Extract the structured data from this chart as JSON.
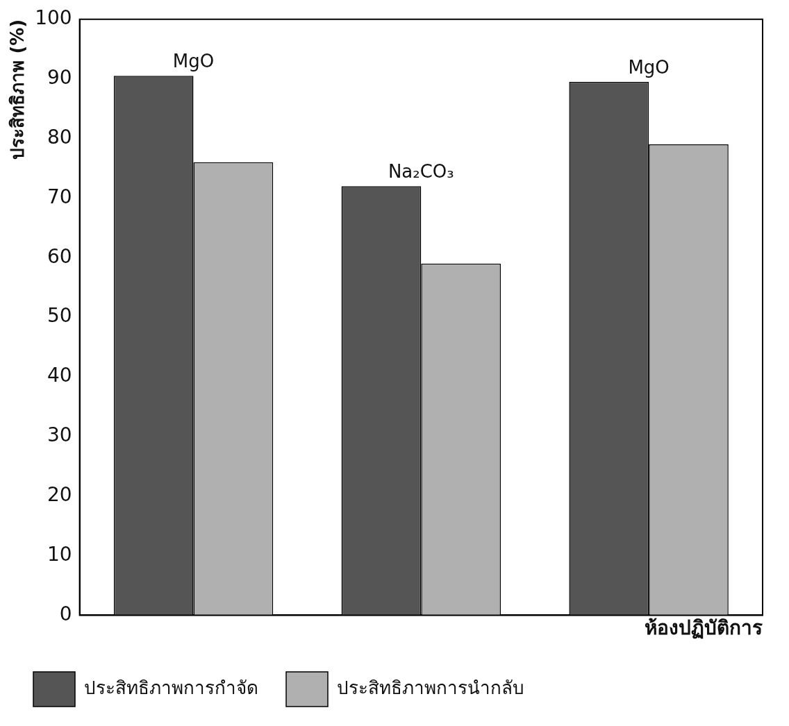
{
  "chart_data": {
    "type": "bar",
    "ylabel": "ประสิทธิภาพ (%)",
    "xlabel": "ห้องปฏิบัติการ",
    "categories": [
      "MgO",
      "Na₂CO₃",
      "MgO"
    ],
    "series": [
      {
        "name": "ประสิทธิภาพการกำจัด",
        "color": "#555555",
        "values": [
          90.5,
          72,
          89.5
        ]
      },
      {
        "name": "ประสิทธิภาพการนำกลับ",
        "color": "#b0b0b0",
        "values": [
          76,
          59,
          79
        ]
      }
    ],
    "ylim": [
      0,
      100
    ],
    "yticks": [
      0,
      10,
      20,
      30,
      40,
      50,
      60,
      70,
      80,
      90,
      100
    ],
    "grid": false,
    "legend": "bottom"
  }
}
